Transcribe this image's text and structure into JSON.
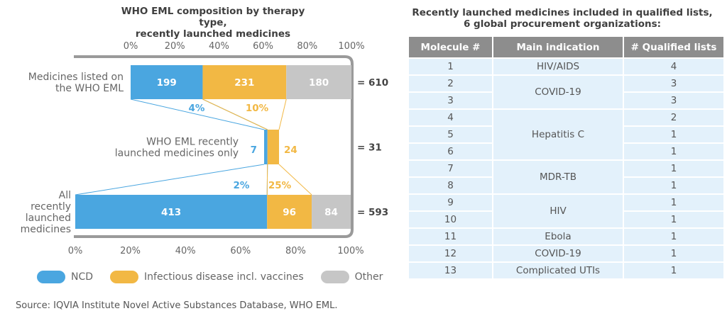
{
  "chart_title_line1": "WHO EML composition by therapy type,",
  "chart_title_line2": "recently launched medicines",
  "table_title_line1": "Recently launched medicines included in qualified lists,",
  "table_title_line2": "6 global procurement organizations:",
  "chart_data": {
    "type": "bar",
    "orientation": "horizontal-stacked",
    "title": "WHO EML composition by therapy type, recently launched medicines",
    "xlabel": "",
    "ylabel": "",
    "xlim": [
      0,
      100
    ],
    "x_ticks": [
      "0%",
      "20%",
      "40%",
      "60%",
      "80%",
      "100%"
    ],
    "categories": [
      {
        "label_lines": [
          "Medicines listed on",
          "the WHO EML"
        ],
        "total_label": "= 610"
      },
      {
        "label_lines": [
          "WHO EML recently",
          "launched medicines only"
        ],
        "total_label": "= 31"
      },
      {
        "label_lines": [
          "All",
          "recently",
          "launched",
          "medicines"
        ],
        "total_label": "= 593"
      }
    ],
    "series": [
      {
        "name": "NCD",
        "color": "#4aa6e0",
        "values": [
          199,
          7,
          413
        ]
      },
      {
        "name": "Infectious disease incl. vaccines",
        "color": "#f2b844",
        "values": [
          231,
          24,
          96
        ]
      },
      {
        "name": "Other",
        "color": "#c6c6c6",
        "values": [
          180,
          0,
          84
        ]
      }
    ],
    "annotations": [
      {
        "text": "4%",
        "series": "NCD",
        "between": "top-middle"
      },
      {
        "text": "10%",
        "series": "Infectious disease incl. vaccines",
        "between": "top-middle"
      },
      {
        "text": "2%",
        "series": "NCD",
        "between": "middle-bottom"
      },
      {
        "text": "25%",
        "series": "Infectious disease incl. vaccines",
        "between": "middle-bottom"
      }
    ],
    "legend": [
      "NCD",
      "Infectious disease incl. vaccines",
      "Other"
    ],
    "legend_position": "bottom"
  },
  "table": {
    "headers": [
      "Molecule #",
      "Main indication",
      "# Qualified lists"
    ],
    "rows": [
      {
        "molecule": "1",
        "indication": "HIV/AIDS",
        "lists": "4"
      },
      {
        "molecule": "2",
        "indication": "COVID-19",
        "lists": "3"
      },
      {
        "molecule": "3",
        "indication": "COVID-19",
        "lists": "3"
      },
      {
        "molecule": "4",
        "indication": "Hepatitis C",
        "lists": "2"
      },
      {
        "molecule": "5",
        "indication": "Hepatitis C",
        "lists": "1"
      },
      {
        "molecule": "6",
        "indication": "Hepatitis C",
        "lists": "1"
      },
      {
        "molecule": "7",
        "indication": "MDR-TB",
        "lists": "1"
      },
      {
        "molecule": "8",
        "indication": "MDR-TB",
        "lists": "1"
      },
      {
        "molecule": "9",
        "indication": "HIV",
        "lists": "1"
      },
      {
        "molecule": "10",
        "indication": "HIV",
        "lists": "1"
      },
      {
        "molecule": "11",
        "indication": "Ebola",
        "lists": "1"
      },
      {
        "molecule": "12",
        "indication": "COVID-19",
        "lists": "1"
      },
      {
        "molecule": "13",
        "indication": "Complicated UTIs",
        "lists": "1"
      }
    ]
  },
  "source": "Source: IQVIA Institute Novel Active Substances Database, WHO EML."
}
